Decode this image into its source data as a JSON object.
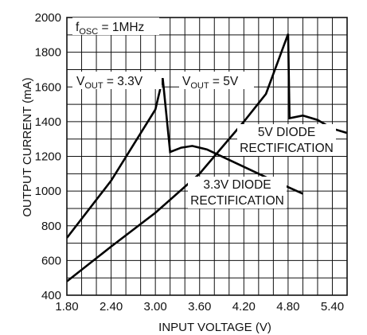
{
  "chart_data": {
    "type": "line",
    "xlabel": "INPUT VOLTAGE (V)",
    "ylabel": "OUTPUT CURRENT (mA)",
    "xlim": [
      1.8,
      5.6
    ],
    "ylim": [
      400,
      2000
    ],
    "x_ticks": [
      "1.80",
      "2.40",
      "3.00",
      "3.60",
      "4.20",
      "4.80",
      "5.40"
    ],
    "y_ticks": [
      "400",
      "600",
      "800",
      "1000",
      "1200",
      "1400",
      "1600",
      "1800",
      "2000"
    ],
    "grid": true,
    "annotations": {
      "fosc": {
        "pre": "f",
        "sub": "OSC",
        "post": " = 1MHz"
      },
      "vout33": {
        "pre": "V",
        "sub": "OUT",
        "post": " = 3.3V"
      },
      "vout5": {
        "pre": "V",
        "sub": "OUT",
        "post": " = 5V"
      },
      "diode5_l1": "5V DIODE",
      "diode5_l2": "RECTIFICATION",
      "diode33_l1": "3.3V DIODE",
      "diode33_l2": "RECTIFICATION"
    },
    "series": [
      {
        "points": [
          [
            1.8,
            730
          ],
          [
            2.4,
            1060
          ],
          [
            3.0,
            1470
          ],
          [
            3.1,
            1650
          ],
          [
            3.2,
            1225
          ],
          [
            3.35,
            1250
          ],
          [
            3.5,
            1260
          ],
          [
            3.7,
            1240
          ],
          [
            4.0,
            1180
          ],
          [
            4.5,
            1080
          ],
          [
            5.0,
            985
          ]
        ]
      },
      {
        "points": [
          [
            1.8,
            480
          ],
          [
            2.4,
            680
          ],
          [
            3.0,
            875
          ],
          [
            3.6,
            1100
          ],
          [
            4.2,
            1400
          ],
          [
            4.5,
            1560
          ],
          [
            4.8,
            1905
          ],
          [
            4.82,
            1420
          ],
          [
            5.0,
            1435
          ],
          [
            5.2,
            1410
          ],
          [
            5.4,
            1360
          ],
          [
            5.6,
            1335
          ]
        ]
      }
    ]
  }
}
